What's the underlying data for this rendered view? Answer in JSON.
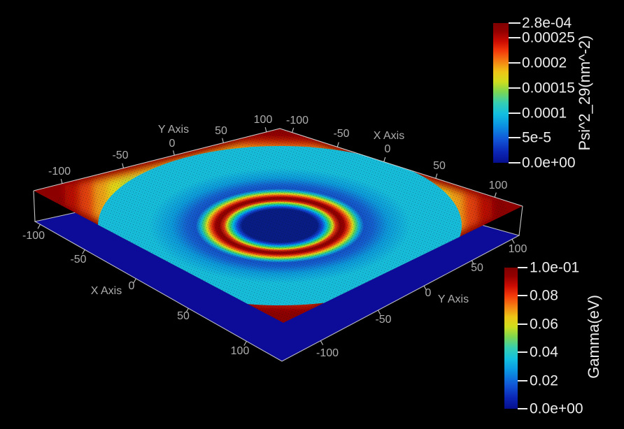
{
  "scene": {
    "background_color": "#000000",
    "axes": {
      "text_color": "#adadad",
      "line_color": "#d9d9d9",
      "edges": [
        {
          "axis": "y",
          "position": "top-left",
          "title": "Y Axis",
          "ticks": [
            "-100",
            "-50",
            "0",
            "50",
            "100"
          ]
        },
        {
          "axis": "x",
          "position": "top-right",
          "title": "X Axis",
          "ticks": [
            "-100",
            "-50",
            "0",
            "50",
            "100"
          ]
        },
        {
          "axis": "x",
          "position": "bottom-left",
          "title": "X Axis",
          "ticks": [
            "-100",
            "-50",
            "0",
            "50",
            "100"
          ]
        },
        {
          "axis": "y",
          "position": "bottom-right",
          "title": "Y Axis",
          "ticks": [
            "-100",
            "-50",
            "0",
            "50",
            "100"
          ]
        }
      ]
    }
  },
  "colorbars": [
    {
      "title": "Psi^2_29(nm^-2)",
      "tick_labels": [
        "2.8e-04",
        "0.00025",
        "0.0002",
        "0.00015",
        "0.0001",
        "5e-5",
        "0.0e+00"
      ],
      "min_color": "#060f8e",
      "max_color": "#7e0000",
      "text_color": "#ededed"
    },
    {
      "title": "Gamma(eV)",
      "tick_labels": [
        "1.0e-01",
        "0.08",
        "0.06",
        "0.04",
        "0.02",
        "0.0e+00"
      ],
      "min_color": "#060f8e",
      "max_color": "#7e0000",
      "text_color": "#ededed"
    }
  ],
  "chart_data": {
    "type": "heatmap",
    "view": "3d perspective; warped colored surface stacked above a flat plane",
    "colormap": "jet",
    "x_axis": {
      "label": "X Axis",
      "tick_values": [
        -100,
        -50,
        0,
        50,
        100
      ],
      "range_estimate": [
        -120,
        120
      ]
    },
    "y_axis": {
      "label": "Y Axis",
      "tick_values": [
        -100,
        -50,
        0,
        50,
        100
      ],
      "range_estimate": [
        -120,
        120
      ]
    },
    "series": [
      {
        "name": "Psi^2_29(nm^-2)",
        "surface": "top warped surface",
        "range": [
          0,
          0.00028
        ],
        "colorbar_tick_values": [
          0,
          5e-05,
          0.0001,
          0.00015,
          0.0002,
          0.00025,
          0.00028
        ],
        "structure": "ring-shaped peak (radius ~30) at the maximum 2.8e-04 with a dark-blue near-zero basin inside; a blue trough just outside the ring, then values rise smoothly through cyan/green/yellow/red to the maximum along the square domain boundary",
        "radial_profile_estimate": [
          {
            "r": 0,
            "value": 1e-05
          },
          {
            "r": 20,
            "value": 1e-05
          },
          {
            "r": 26,
            "value": 0.0001
          },
          {
            "r": 30,
            "value": 0.00028
          },
          {
            "r": 36,
            "value": 8e-05
          },
          {
            "r": 45,
            "value": 3e-05
          },
          {
            "r": 60,
            "value": 8e-05
          },
          {
            "r": 75,
            "value": 0.00011
          },
          {
            "r": 90,
            "value": 0.00015
          },
          {
            "r": 100,
            "value": 0.00019
          },
          {
            "r": 108,
            "value": 0.00022
          },
          {
            "r": 115,
            "value": 0.00026
          },
          {
            "r": 120,
            "value": 0.00028
          }
        ],
        "contour_bands": [
          {
            "color": "#8c0000",
            "value": 0.00028,
            "f": 1.0,
            "s": 0
          },
          {
            "color": "#bb1004",
            "value": 0.00026,
            "f": 0.97,
            "s": 0.1
          },
          {
            "color": "#e4430e",
            "value": 0.000245,
            "f": 0.945,
            "s": 0.14
          },
          {
            "color": "#efa012",
            "value": 0.000215,
            "f": 0.92,
            "s": 0.18
          },
          {
            "color": "#e3da16",
            "value": 0.00019,
            "f": 0.895,
            "s": 0.22
          },
          {
            "color": "#9fdc35",
            "value": 0.000165,
            "f": 0.865,
            "s": 0.26
          },
          {
            "color": "#52d67e",
            "value": 0.00014,
            "f": 0.835,
            "s": 0.3
          },
          {
            "color": "#2fccc9",
            "value": 0.000115,
            "f": 0.8,
            "s": 0.34
          }
        ]
      },
      {
        "name": "Gamma(eV)",
        "surface": "bottom flat plane",
        "range": [
          0,
          0.1
        ],
        "colorbar_tick_values": [
          0,
          0.02,
          0.04,
          0.06,
          0.08,
          0.1
        ],
        "plane_value_estimate": 0,
        "plane_color": "#0c0c99"
      }
    ]
  }
}
